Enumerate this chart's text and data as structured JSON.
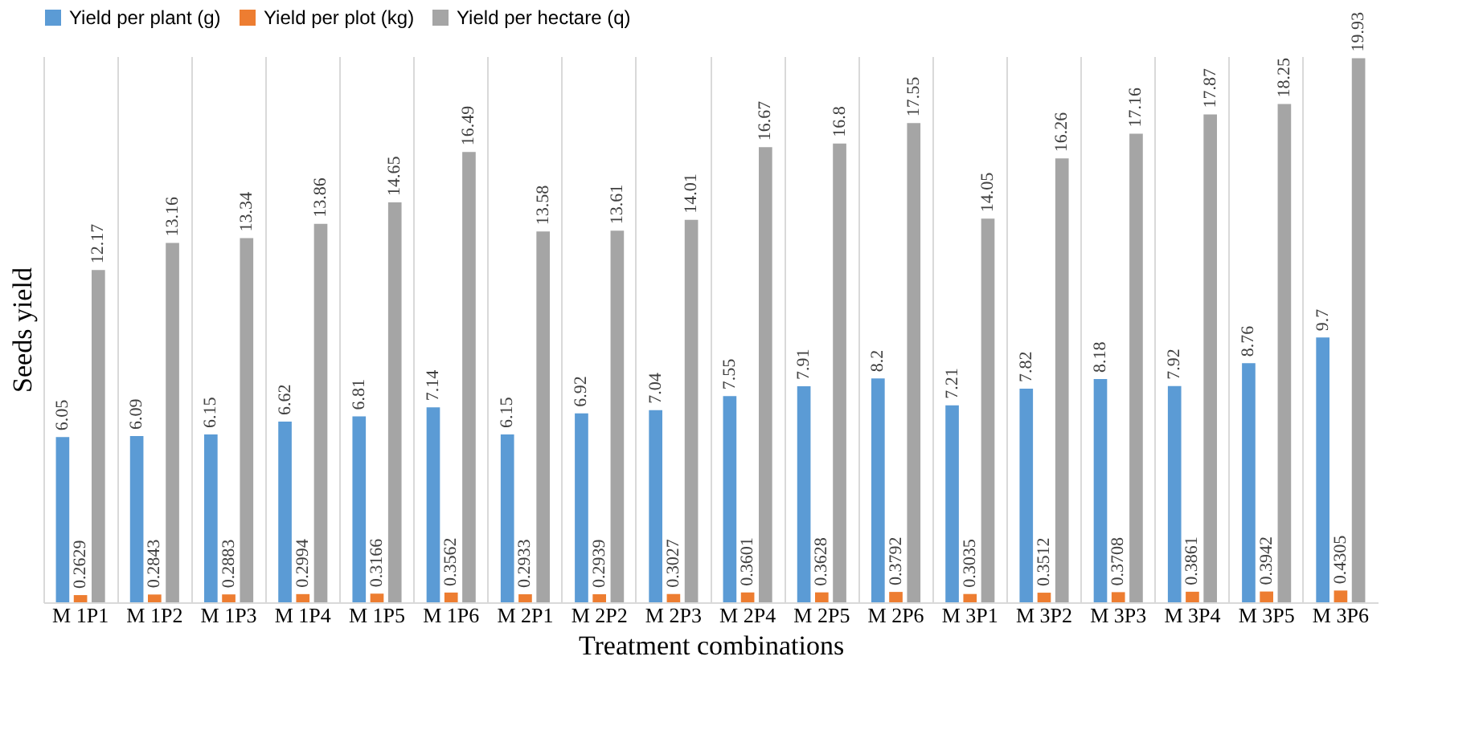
{
  "chart_data": {
    "type": "bar",
    "xlabel": "Treatment combinations",
    "ylabel": "Seeds yield",
    "categories": [
      "M 1P1",
      "M 1P2",
      "M 1P3",
      "M 1P4",
      "M 1P5",
      "M 1P6",
      "M 2P1",
      "M 2P2",
      "M 2P3",
      "M 2P4",
      "M 2P5",
      "M 2P6",
      "M 3P1",
      "M 3P2",
      "M 3P3",
      "M 3P4",
      "M 3P5",
      "M 3P6"
    ],
    "series": [
      {
        "name": "Yield per plant (g)",
        "color": "#5b9bd5",
        "values": [
          6.05,
          6.09,
          6.15,
          6.62,
          6.81,
          7.14,
          6.15,
          6.92,
          7.04,
          7.55,
          7.91,
          8.2,
          7.21,
          7.82,
          8.18,
          7.92,
          8.76,
          9.7
        ]
      },
      {
        "name": "Yield per plot (kg)",
        "color": "#ed7d31",
        "values": [
          0.2629,
          0.2843,
          0.2883,
          0.2994,
          0.3166,
          0.3562,
          0.2933,
          0.2939,
          0.3027,
          0.3601,
          0.3628,
          0.3792,
          0.3035,
          0.3512,
          0.3708,
          0.3861,
          0.3942,
          0.4305
        ]
      },
      {
        "name": "Yield per hectare (q)",
        "color": "#a5a5a5",
        "values": [
          12.17,
          13.16,
          13.34,
          13.86,
          14.65,
          16.49,
          13.58,
          13.61,
          14.01,
          16.67,
          16.8,
          17.55,
          14.05,
          16.26,
          17.16,
          17.87,
          18.25,
          19.93
        ]
      }
    ],
    "data_labels": true,
    "grid": "x",
    "legend": "top"
  }
}
